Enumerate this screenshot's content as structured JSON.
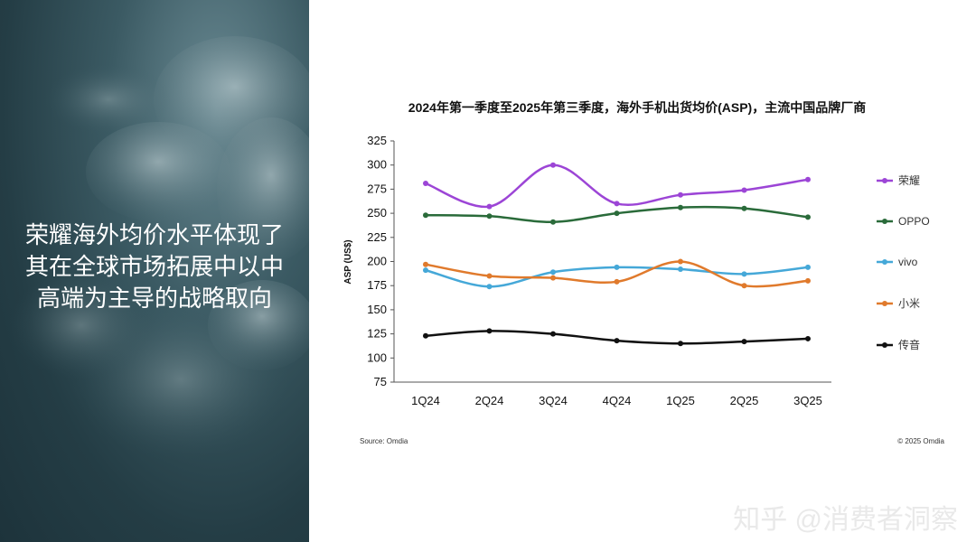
{
  "headline": {
    "lines": [
      "荣耀海外均价水平体现了",
      "其在全球市场拓展中以中",
      "高端为主导的战略取向"
    ]
  },
  "footer": {
    "source": "Source: Omdia",
    "copyright": "© 2025 Omdia"
  },
  "watermark": "知乎 @消费者洞察",
  "colors": {
    "panel_dark": "#243d45",
    "honor": "#9c45d6",
    "oppo": "#2a6b3a",
    "vivo": "#45a8d8",
    "xiaomi": "#e07a2c",
    "transsion": "#111111"
  },
  "chart_data": {
    "type": "line",
    "title": "2024年第一季度至2025年第三季度，海外手机出货均价(ASP)，主流中国品牌厂商",
    "xlabel": "",
    "ylabel": "ASP (US$)",
    "ylim": [
      75,
      325
    ],
    "yticks": [
      75,
      100,
      125,
      150,
      175,
      200,
      225,
      250,
      275,
      300,
      325
    ],
    "categories": [
      "1Q24",
      "2Q24",
      "3Q24",
      "4Q24",
      "1Q25",
      "2Q25",
      "3Q25"
    ],
    "grid": false,
    "legend_position": "right",
    "series": [
      {
        "name": "荣耀",
        "color": "#9c45d6",
        "values": [
          281,
          257,
          300,
          260,
          269,
          274,
          285
        ]
      },
      {
        "name": "OPPO",
        "color": "#2a6b3a",
        "values": [
          248,
          247,
          241,
          250,
          256,
          255,
          246
        ]
      },
      {
        "name": "vivo",
        "color": "#45a8d8",
        "values": [
          191,
          174,
          189,
          194,
          192,
          187,
          194
        ]
      },
      {
        "name": "小米",
        "color": "#e07a2c",
        "values": [
          197,
          185,
          183,
          179,
          200,
          175,
          180
        ]
      },
      {
        "name": "传音",
        "color": "#111111",
        "values": [
          123,
          128,
          125,
          118,
          115,
          117,
          120
        ]
      }
    ]
  }
}
